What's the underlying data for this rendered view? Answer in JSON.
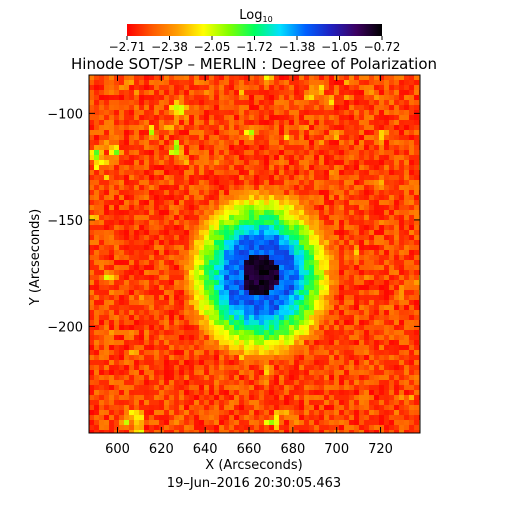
{
  "chart_data": {
    "type": "heatmap",
    "title": "Hinode SOT/SP – MERLIN : Degree of Polarization",
    "timestamp": "19–Jun–2016 20:30:05.463",
    "xlabel": "X (Arcseconds)",
    "ylabel": "Y (Arcseconds)",
    "xlim": [
      587,
      738
    ],
    "ylim": [
      -250,
      -82
    ],
    "x_ticks": [
      600,
      620,
      640,
      660,
      680,
      700,
      720
    ],
    "x_tick_labels": [
      "600",
      "620",
      "640",
      "660",
      "680",
      "700",
      "720"
    ],
    "y_ticks": [
      -100,
      -150,
      -200
    ],
    "y_tick_labels": [
      "−100",
      "−150",
      "−200"
    ],
    "colorbar": {
      "label_main": "Log",
      "label_sub": "10",
      "min": -2.71,
      "max": -0.72,
      "tick_labels": [
        "−2.71",
        "−2.38",
        "−2.05",
        "−1.72",
        "−1.38",
        "−1.05",
        "−0.72"
      ],
      "colormap": [
        "#ff0000",
        "#ff5a00",
        "#ffa000",
        "#ffff00",
        "#80ff00",
        "#00ff60",
        "#00e0ff",
        "#0060ff",
        "#2020c0",
        "#3c0060",
        "#000000"
      ]
    },
    "feature": {
      "description": "sunspot",
      "center_x": 665,
      "center_y": -176,
      "umbra_value": -0.8,
      "penumbra_value": -1.3,
      "background_value": -2.55
    }
  }
}
